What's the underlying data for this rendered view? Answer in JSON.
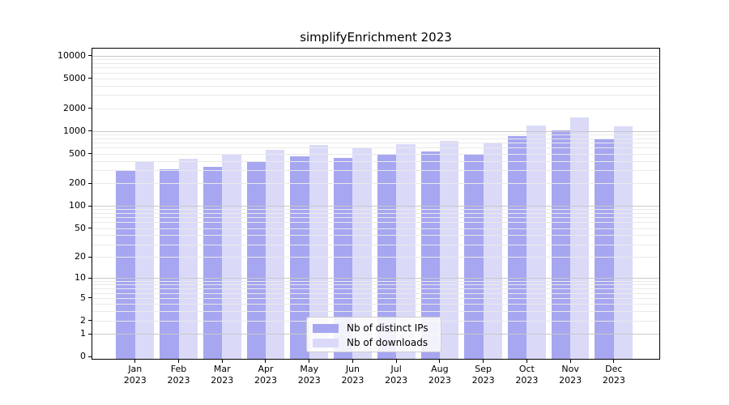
{
  "chart_data": {
    "type": "bar",
    "title": "simplifyEnrichment 2023",
    "categories": [
      "Jan 2023",
      "Feb 2023",
      "Mar 2023",
      "Apr 2023",
      "May 2023",
      "Jun 2023",
      "Jul 2023",
      "Aug 2023",
      "Sep 2023",
      "Oct 2023",
      "Nov 2023",
      "Dec 2023"
    ],
    "series": [
      {
        "name": "Nb of distinct IPs",
        "color": "#a6a6f1",
        "values": [
          290,
          310,
          335,
          385,
          460,
          440,
          495,
          530,
          485,
          850,
          1010,
          800
        ]
      },
      {
        "name": "Nb of downloads",
        "color": "#dadaf8",
        "values": [
          390,
          425,
          500,
          560,
          650,
          600,
          675,
          730,
          700,
          1180,
          1510,
          1150
        ]
      }
    ],
    "xlabel": "",
    "ylabel": "",
    "yscale": "log(x+1)",
    "yticks": [
      0,
      1,
      2,
      5,
      10,
      20,
      50,
      100,
      200,
      500,
      1000,
      2000,
      5000,
      10000
    ],
    "ylim": [
      0,
      12800
    ],
    "grid": true,
    "grid_minor_color": "#e9e9e9",
    "grid_major_color": "#c8c8c8",
    "legend_position": "lower center"
  }
}
